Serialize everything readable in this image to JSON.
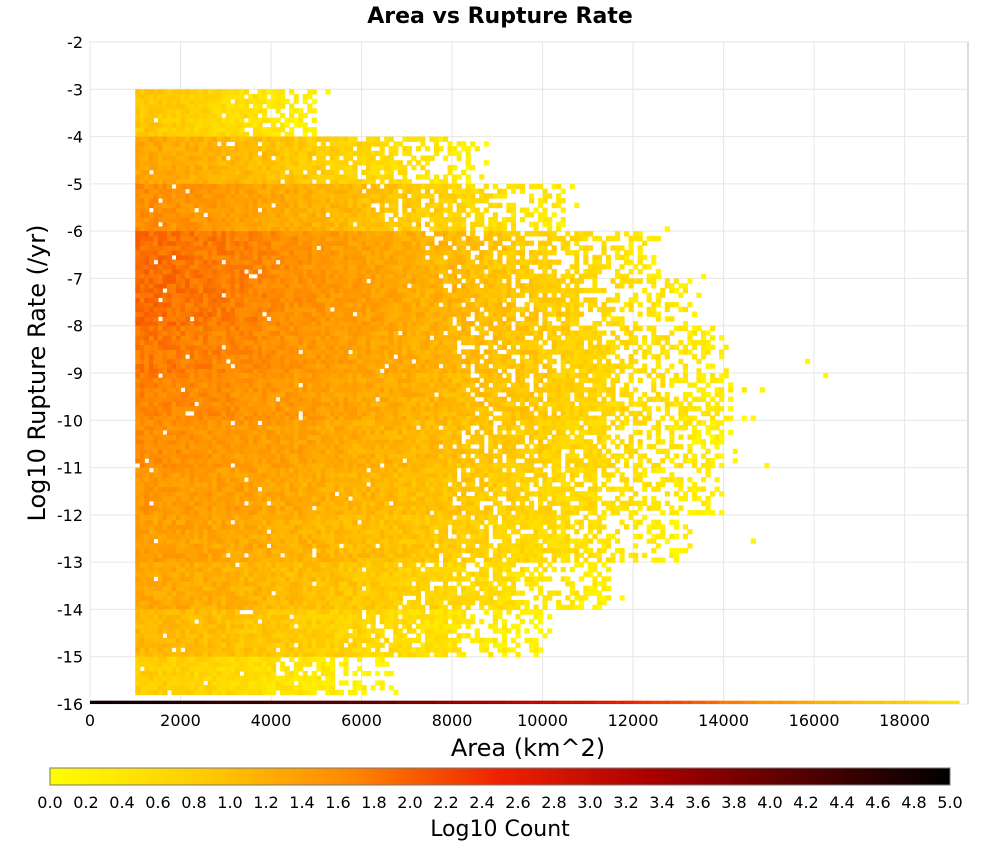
{
  "chart_data": {
    "type": "heatmap",
    "title": "Area vs Rupture Rate",
    "xlabel": "Area (km^2)",
    "ylabel": "Log10 Rupture Rate (/yr)",
    "xlim": [
      0,
      19400
    ],
    "ylim": [
      -16,
      -2
    ],
    "x_ticks": [
      "0",
      "2000",
      "4000",
      "6000",
      "8000",
      "10000",
      "12000",
      "14000",
      "16000",
      "18000"
    ],
    "y_ticks": [
      "-2",
      "-3",
      "-4",
      "-5",
      "-6",
      "-7",
      "-8",
      "-9",
      "-10",
      "-11",
      "-12",
      "-13",
      "-14",
      "-15",
      "-16"
    ],
    "grid": true,
    "colorbar": {
      "label": "Log10 Count",
      "range": [
        0.0,
        5.0
      ],
      "ticks": [
        "0.0",
        "0.2",
        "0.4",
        "0.6",
        "0.8",
        "1.0",
        "1.2",
        "1.4",
        "1.6",
        "1.8",
        "2.0",
        "2.2",
        "2.4",
        "2.6",
        "2.8",
        "3.0",
        "3.2",
        "3.4",
        "3.6",
        "3.8",
        "4.0",
        "4.2",
        "4.4",
        "4.6",
        "4.8",
        "5.0"
      ],
      "colors": [
        "#ffff00",
        "#ffcc00",
        "#ff8800",
        "#ee2200",
        "#aa0000",
        "#550000",
        "#000000"
      ]
    },
    "cell_size": {
      "area_km2": 100,
      "log_rate": 0.1
    },
    "density": {
      "description_rows": [
        {
          "log_rate_min": -3.0,
          "log_rate_max": -4.0,
          "area_max": 5000,
          "peak_log_count": 0.9
        },
        {
          "log_rate_min": -4.0,
          "log_rate_max": -5.0,
          "area_max": 8500,
          "peak_log_count": 1.3
        },
        {
          "log_rate_min": -5.0,
          "log_rate_max": -6.0,
          "area_max": 10500,
          "peak_log_count": 1.6
        },
        {
          "log_rate_min": -6.0,
          "log_rate_max": -7.0,
          "area_max": 12500,
          "peak_log_count": 1.9
        },
        {
          "log_rate_min": -7.0,
          "log_rate_max": -8.0,
          "area_max": 13200,
          "peak_log_count": 1.9
        },
        {
          "log_rate_min": -8.0,
          "log_rate_max": -9.0,
          "area_max": 13800,
          "peak_log_count": 1.8
        },
        {
          "log_rate_min": -9.0,
          "log_rate_max": -10.0,
          "area_max": 14200,
          "peak_log_count": 1.7
        },
        {
          "log_rate_min": -10.0,
          "log_rate_max": -11.0,
          "area_max": 14000,
          "peak_log_count": 1.6
        },
        {
          "log_rate_min": -11.0,
          "log_rate_max": -12.0,
          "area_max": 13700,
          "peak_log_count": 1.5
        },
        {
          "log_rate_min": -12.0,
          "log_rate_max": -13.0,
          "area_max": 13000,
          "peak_log_count": 1.4
        },
        {
          "log_rate_min": -13.0,
          "log_rate_max": -14.0,
          "area_max": 11500,
          "peak_log_count": 1.3
        },
        {
          "log_rate_min": -14.0,
          "log_rate_max": -15.0,
          "area_max": 10000,
          "peak_log_count": 1.1
        },
        {
          "log_rate_min": -15.0,
          "log_rate_max": -15.8,
          "area_max": 6500,
          "peak_log_count": 0.8
        }
      ],
      "floor_row": {
        "log_rate": -16.0,
        "points": [
          [
            1000,
            4.8
          ],
          [
            3000,
            4.5
          ],
          [
            6000,
            4.1
          ],
          [
            9000,
            3.3
          ],
          [
            11000,
            2.8
          ],
          [
            12500,
            2.3
          ],
          [
            14000,
            1.8
          ],
          [
            16000,
            1.2
          ],
          [
            18000,
            0.8
          ],
          [
            19200,
            0.4
          ]
        ]
      },
      "outliers": [
        [
          15800,
          -8.8
        ],
        [
          16200,
          -9.1
        ],
        [
          14800,
          -9.4
        ],
        [
          14600,
          -10.0
        ],
        [
          14900,
          -11.0
        ],
        [
          14600,
          -12.6
        ],
        [
          12700,
          -6.0
        ],
        [
          13500,
          -7.0
        ]
      ]
    }
  }
}
